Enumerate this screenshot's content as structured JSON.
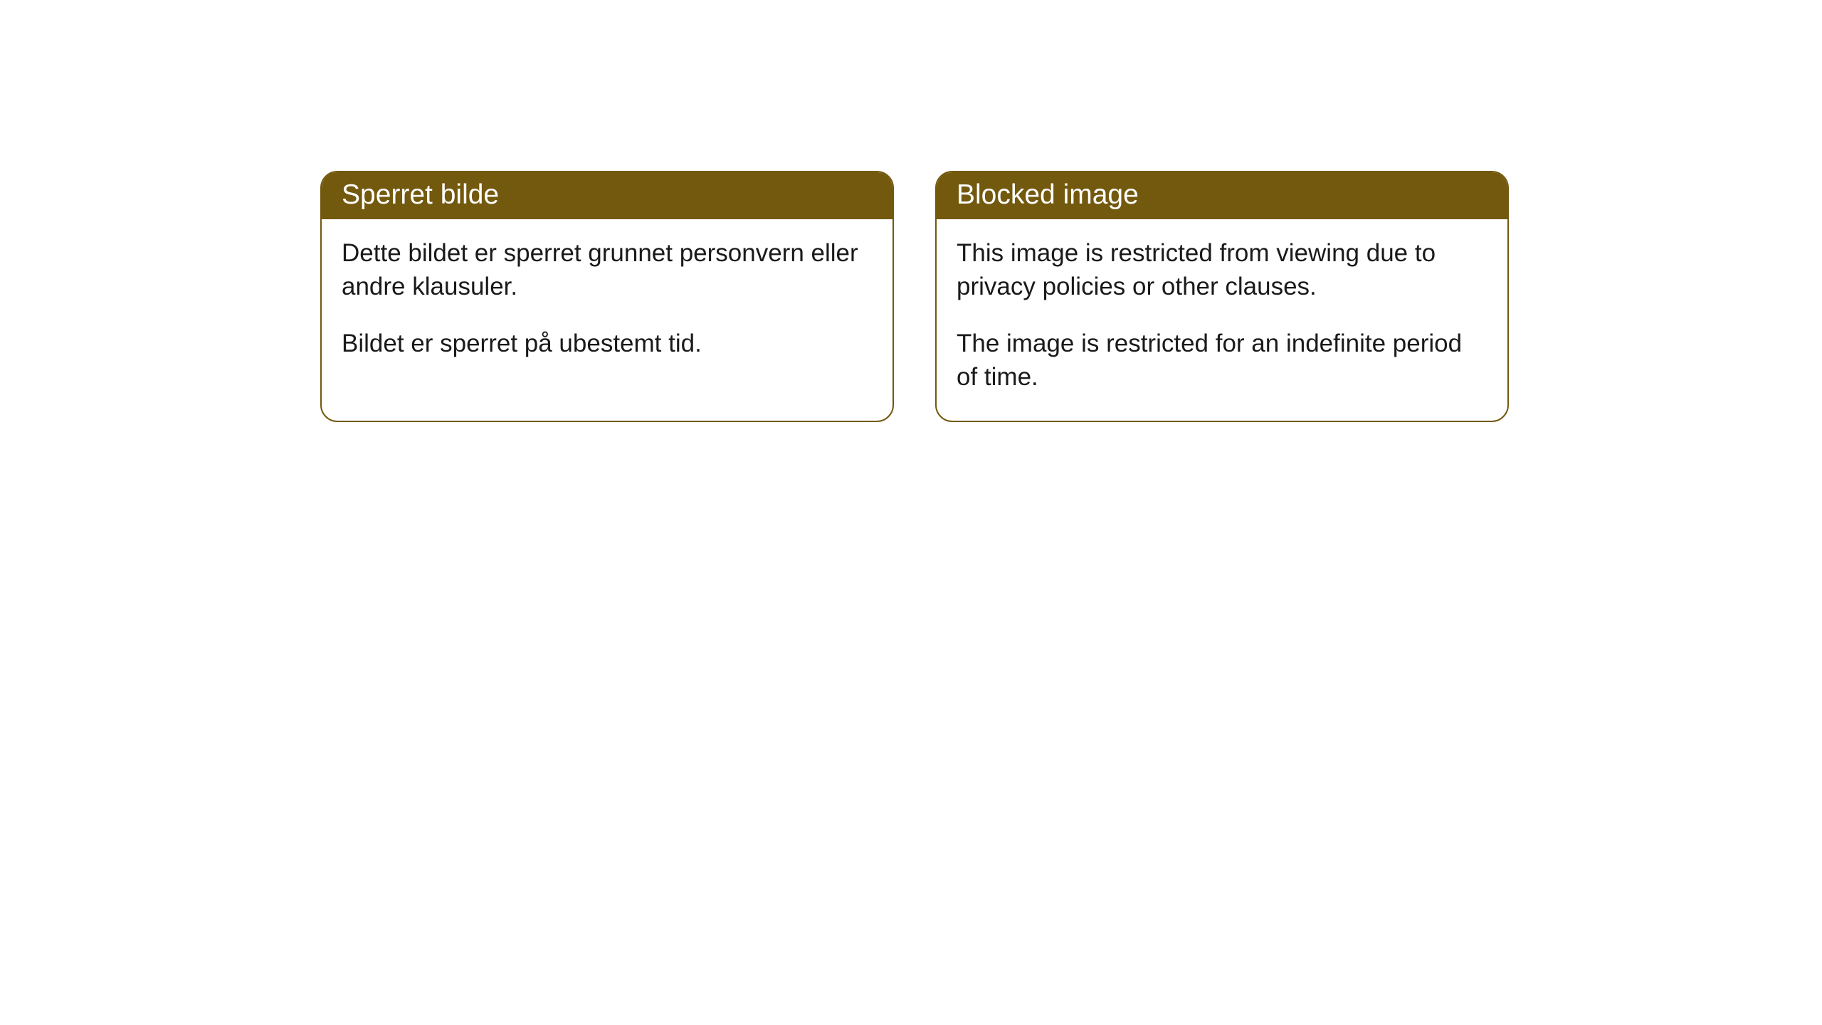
{
  "colors": {
    "header_bg": "#73590e",
    "header_text": "#ffffff",
    "border": "#73590e",
    "body_text": "#1a1a1a",
    "page_bg": "#ffffff"
  },
  "cards": [
    {
      "title": "Sperret bilde",
      "paragraphs": [
        "Dette bildet er sperret grunnet personvern eller andre klausuler.",
        "Bildet er sperret på ubestemt tid."
      ]
    },
    {
      "title": "Blocked image",
      "paragraphs": [
        "This image is restricted from viewing due to privacy policies or other clauses.",
        "The image is restricted for an indefinite period of time."
      ]
    }
  ]
}
